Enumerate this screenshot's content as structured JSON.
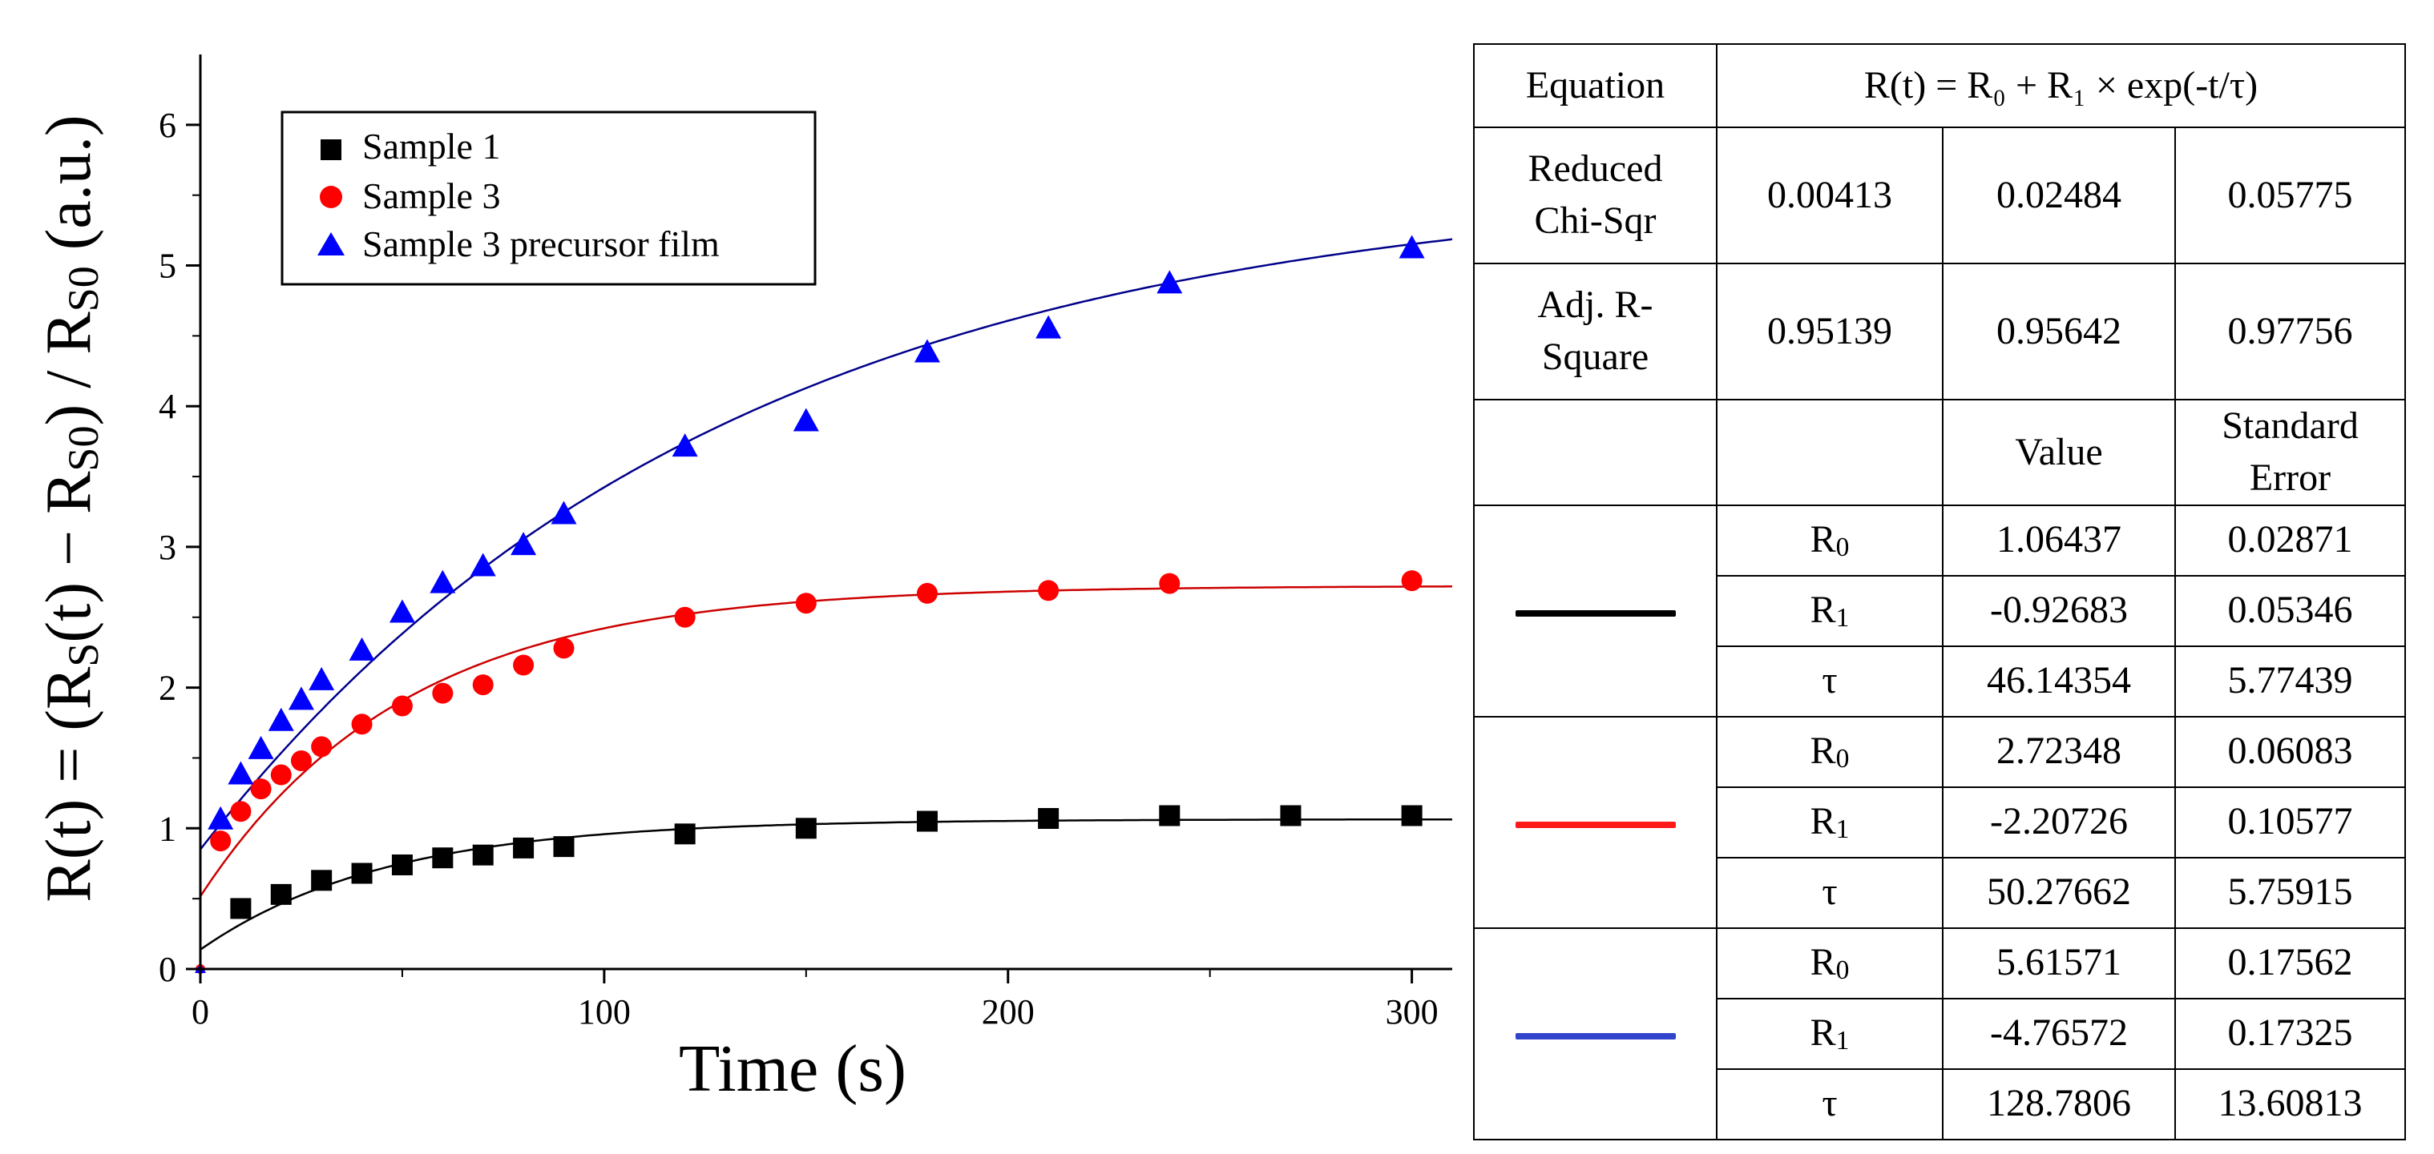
{
  "chart_data": {
    "type": "scatter",
    "xlabel": "Time (s)",
    "ylabel": {
      "p1": "R(t) = (R",
      "s1": "S",
      "p2": "(t) − R",
      "s2": "S0",
      "p3": ") / R",
      "s3": "S0",
      "p4": "  (a.u.)"
    },
    "xlim": [
      0,
      310
    ],
    "ylim": [
      0,
      6.5
    ],
    "xticks": [
      0,
      100,
      200,
      300
    ],
    "yticks": [
      0,
      1,
      2,
      3,
      4,
      5,
      6
    ],
    "legend_position": "top-left",
    "series": [
      {
        "name": "Sample 1",
        "marker": "square",
        "color": "#000000",
        "fit_color": "#000000",
        "x": [
          10,
          20,
          30,
          40,
          50,
          60,
          70,
          80,
          90,
          120,
          150,
          180,
          210,
          240,
          270,
          300
        ],
        "y": [
          0.43,
          0.53,
          0.63,
          0.68,
          0.74,
          0.79,
          0.81,
          0.86,
          0.87,
          0.96,
          1.0,
          1.05,
          1.07,
          1.09,
          1.09,
          1.09
        ],
        "fit": {
          "R0": 1.06437,
          "R1": -0.92683,
          "tau": 46.14354
        }
      },
      {
        "name": "Sample 3",
        "marker": "circle",
        "color": "#ff0000",
        "fit_color": "#cc0000",
        "x": [
          5,
          10,
          15,
          20,
          25,
          30,
          40,
          50,
          60,
          70,
          80,
          90,
          120,
          150,
          180,
          210,
          240,
          300
        ],
        "y": [
          0.91,
          1.12,
          1.28,
          1.38,
          1.48,
          1.58,
          1.74,
          1.87,
          1.96,
          2.02,
          2.16,
          2.28,
          2.5,
          2.6,
          2.67,
          2.69,
          2.74,
          2.76
        ],
        "fit": {
          "R0": 2.72348,
          "R1": -2.20726,
          "tau": 50.27662
        }
      },
      {
        "name": "Sample 3 precursor film",
        "marker": "triangle",
        "color": "#0000ff",
        "fit_color": "#00008b",
        "x": [
          5,
          10,
          15,
          20,
          25,
          30,
          40,
          50,
          60,
          70,
          80,
          90,
          120,
          150,
          180,
          210,
          240,
          300
        ],
        "y": [
          1.06,
          1.38,
          1.56,
          1.76,
          1.91,
          2.05,
          2.26,
          2.53,
          2.74,
          2.86,
          3.01,
          3.23,
          3.71,
          3.89,
          4.38,
          4.55,
          4.87,
          5.12
        ],
        "fit": {
          "R0": 5.61571,
          "R1": -4.76572,
          "tau": 128.7806
        }
      }
    ]
  },
  "table": {
    "equation_label": "Equation",
    "equation_text": "R(t)  = R₀ + R₁ × exp(-t/τ)",
    "reduced_chi_label_1": "Reduced",
    "reduced_chi_label_2": "Chi-Sqr",
    "reduced_chi": [
      "0.00413",
      "0.02484",
      "0.05775"
    ],
    "adj_r_label_1": "Adj. R-",
    "adj_r_label_2": "Square",
    "adj_r": [
      "0.95139",
      "0.95642",
      "0.97756"
    ],
    "value_header": "Value",
    "se_header_1": "Standard",
    "se_header_2": "Error",
    "param_r0": "R",
    "param_r0_sub": "0",
    "param_r1": "R",
    "param_r1_sub": "1",
    "param_tau": "τ",
    "groups": [
      {
        "line_color": "#000000",
        "rows": [
          [
            "1.06437",
            "0.02871"
          ],
          [
            "-0.92683",
            "0.05346"
          ],
          [
            "46.14354",
            "5.77439"
          ]
        ]
      },
      {
        "line_color": "#ff1a1a",
        "rows": [
          [
            "2.72348",
            "0.06083"
          ],
          [
            "-2.20726",
            "0.10577"
          ],
          [
            "50.27662",
            "5.75915"
          ]
        ]
      },
      {
        "line_color": "#3344cc",
        "rows": [
          [
            "5.61571",
            "0.17562"
          ],
          [
            "-4.76572",
            "0.17325"
          ],
          [
            "128.7806",
            "13.60813"
          ]
        ]
      }
    ]
  }
}
